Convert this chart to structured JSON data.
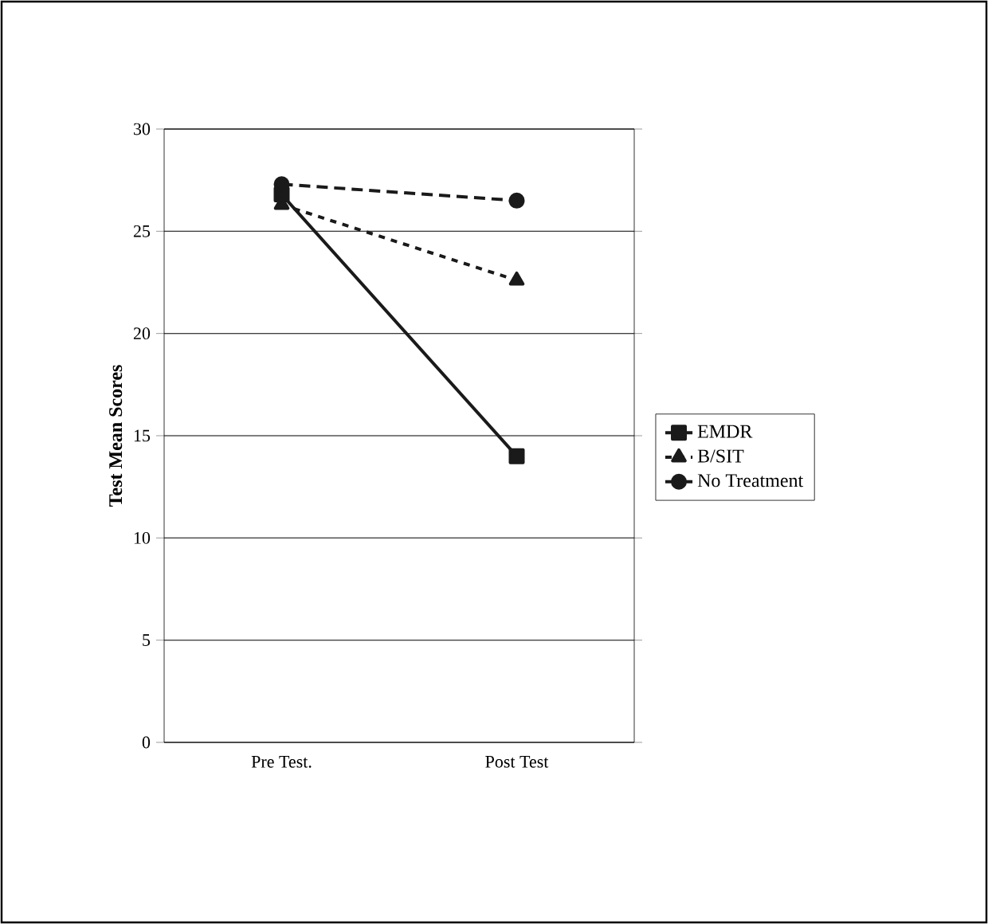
{
  "chart_data": {
    "type": "line",
    "ylabel": "Test Mean Scores",
    "categories": [
      "Pre Test.",
      "Post Test"
    ],
    "series": [
      {
        "name": "EMDR",
        "color": "#1a1a1a",
        "values": [
          26.8,
          14
        ],
        "marker": "square",
        "line_style": "solid"
      },
      {
        "name": "B/SIT",
        "color": "#1a1a1a",
        "values": [
          26.3,
          22.6
        ],
        "marker": "triangle",
        "line_style": "dashed"
      },
      {
        "name": "No Treatment",
        "color": "#1a1a1a",
        "values": [
          27.3,
          26.5
        ],
        "marker": "circle",
        "line_style": "dashed"
      }
    ],
    "ylim": [
      0,
      30
    ],
    "yticks": [
      0,
      5,
      10,
      15,
      20,
      25,
      30
    ],
    "grid": "y",
    "legend": "right"
  }
}
